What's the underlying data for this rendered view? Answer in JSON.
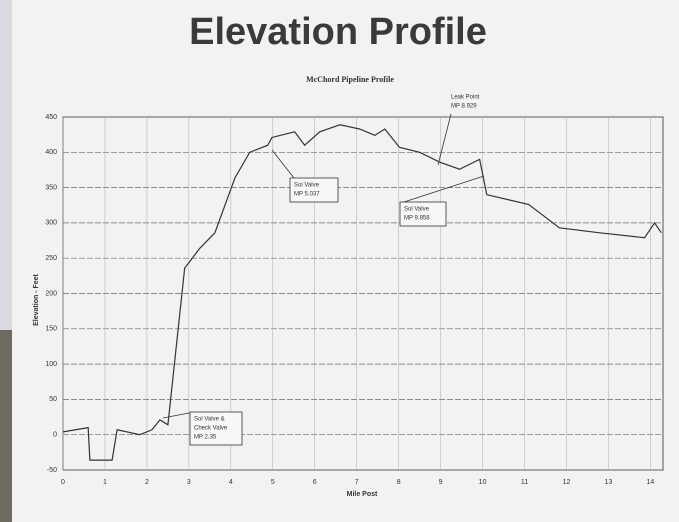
{
  "chart_data": {
    "type": "line",
    "title": "Elevation Profile",
    "subtitle": "McChord Pipeline Profile",
    "x_label": "Mile Post",
    "y_label": "Elevation - Feet",
    "x": [
      0,
      0.6,
      0.64,
      1.17,
      1.29,
      1.83,
      2.12,
      2.31,
      2.5,
      2.9,
      3.26,
      3.62,
      4.1,
      4.45,
      4.88,
      4.98,
      5.52,
      5.76,
      6.12,
      6.6,
      7.07,
      7.43,
      7.67,
      8.02,
      8.5,
      8.98,
      9.45,
      9.93,
      10.1,
      11.1,
      11.83,
      12.79,
      13.86,
      14.1,
      14.26
    ],
    "series": [
      {
        "color": "#333333",
        "values": [
          4,
          10,
          -36,
          -36,
          7,
          0,
          7,
          21,
          14,
          236,
          264,
          286,
          364,
          400,
          410,
          421,
          429,
          410,
          429,
          439,
          433,
          424,
          433,
          407,
          400,
          386,
          376,
          390,
          340,
          326,
          293,
          286,
          279,
          300,
          286
        ]
      }
    ],
    "xlim": [
      0,
      14.3
    ],
    "xticks": [
      0,
      1,
      2,
      3,
      4,
      5,
      6,
      7,
      8,
      9,
      10,
      11,
      12,
      13,
      14
    ],
    "ylim": [
      -50,
      450
    ],
    "yticks": [
      -50,
      0,
      50,
      100,
      150,
      200,
      250,
      300,
      350,
      400,
      450
    ],
    "grid": true,
    "annotations": [
      {
        "lines": [
          "Sol Valve &",
          "Check Valve",
          "MP 2.35"
        ]
      },
      {
        "lines": [
          "Sol Valve",
          "MP 5.037"
        ]
      },
      {
        "lines": [
          "Leak Point",
          "MP 8.929"
        ]
      },
      {
        "lines": [
          "Sol Valve",
          "MP 9.858"
        ]
      }
    ]
  }
}
